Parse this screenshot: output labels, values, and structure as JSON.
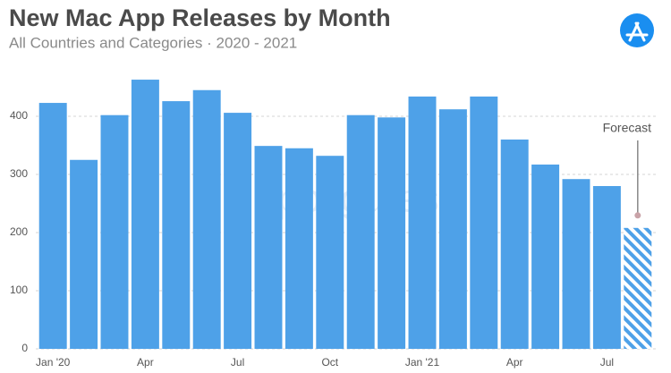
{
  "chart_data": {
    "type": "bar",
    "title": "New Mac App Releases by Month",
    "subtitle": "All Countries and Categories · 2020 - 2021",
    "watermark": "appfigures",
    "categories": [
      "Jan '20",
      null,
      null,
      "Apr",
      null,
      null,
      "Jul",
      null,
      null,
      "Oct",
      null,
      null,
      "Jan '21",
      null,
      null,
      "Apr",
      null,
      null,
      "Jul",
      null
    ],
    "values": [
      423,
      325,
      402,
      463,
      426,
      445,
      406,
      349,
      345,
      332,
      402,
      398,
      434,
      412,
      434,
      360,
      317,
      292,
      280,
      208
    ],
    "color": "#4ea1e8",
    "ylim": [
      0,
      480
    ],
    "yticks": [
      0,
      100,
      200,
      300,
      400
    ],
    "grid": true,
    "annotation": {
      "text": "Forecast",
      "index": 19
    }
  }
}
